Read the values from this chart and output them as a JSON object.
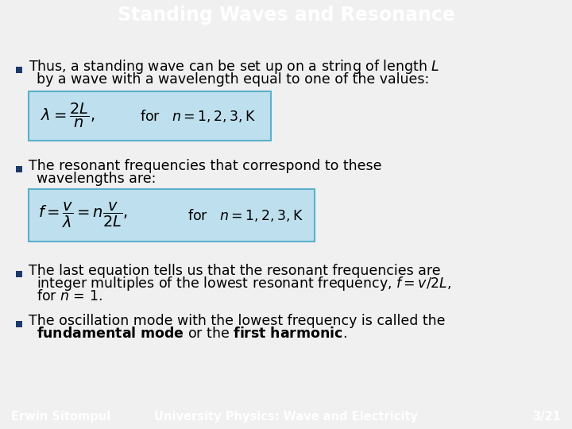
{
  "title": "Standing Waves and Resonance",
  "title_bg": "#29ABD4",
  "title_color": "#FFFFFF",
  "body_bg": "#F0F0F0",
  "content_bg": "#FFFFFF",
  "footer_bg": "#29ABD4",
  "footer_left": "Erwin Sitompul",
  "footer_right": "University Physics: Wave and Electricity",
  "footer_page": "3/21",
  "footer_color": "#FFFFFF",
  "bullet_color": "#1A3A6E",
  "text_color": "#000000",
  "formula_bg": "#BEE0EE",
  "formula_border": "#5BB0CC",
  "title_fontsize": 17,
  "body_fontsize": 12.5,
  "footer_fontsize": 10.5
}
